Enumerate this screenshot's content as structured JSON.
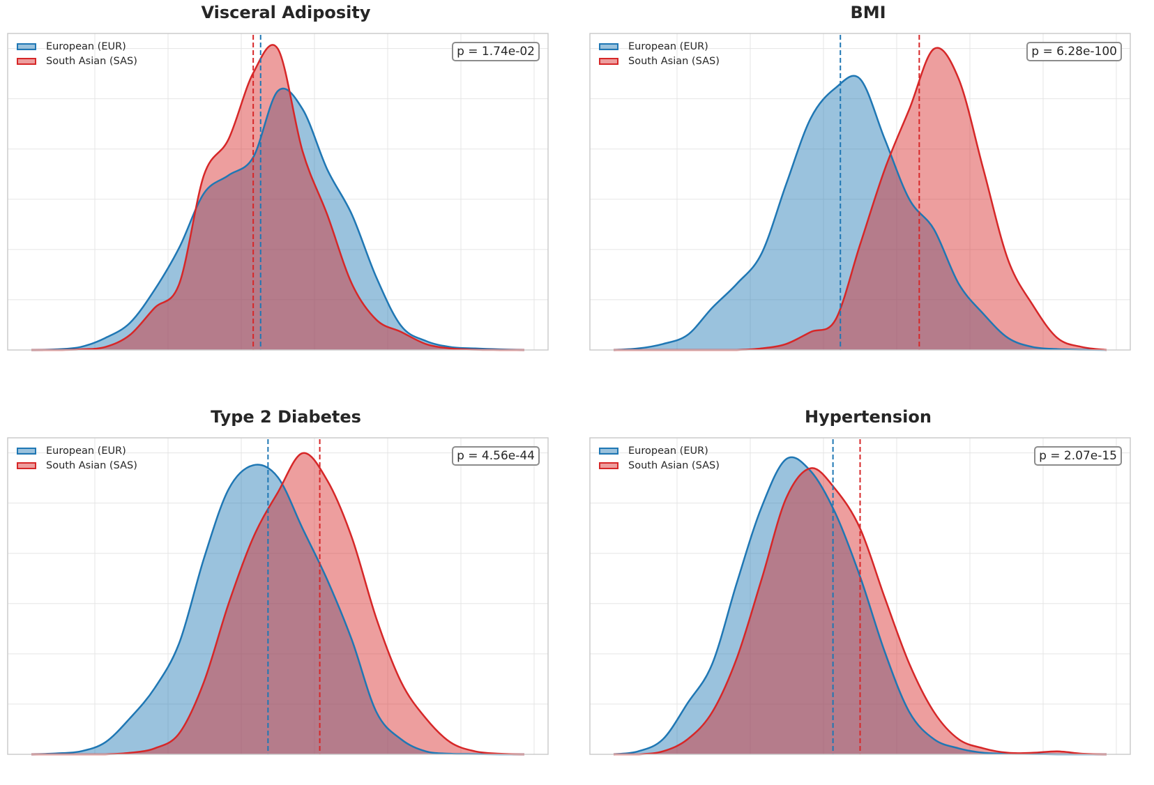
{
  "legend": {
    "eur": "European (EUR)",
    "sas": "South Asian (SAS)"
  },
  "colors": {
    "eur": "#1f77b4",
    "sas": "#d62728",
    "grid": "#e5e5e5",
    "frame": "#cccccc"
  },
  "chart_data": [
    {
      "type": "area",
      "title": "Visceral Adiposity",
      "annotation": "p = 1.74e-02",
      "xlim": [
        0,
        100
      ],
      "ylim": [
        0,
        1
      ],
      "x": [
        0,
        5,
        10,
        15,
        20,
        25,
        30,
        35,
        40,
        45,
        50,
        55,
        60,
        65,
        70,
        75,
        80,
        85,
        90,
        95,
        100
      ],
      "series": [
        {
          "name": "European (EUR)",
          "values": [
            0,
            0.002,
            0.01,
            0.04,
            0.09,
            0.2,
            0.34,
            0.52,
            0.58,
            0.64,
            0.86,
            0.8,
            0.6,
            0.45,
            0.24,
            0.08,
            0.03,
            0.01,
            0.005,
            0.002,
            0
          ]
        },
        {
          "name": "South Asian (SAS)",
          "values": [
            0,
            0,
            0.002,
            0.01,
            0.05,
            0.14,
            0.22,
            0.58,
            0.7,
            0.92,
            1.0,
            0.66,
            0.45,
            0.22,
            0.1,
            0.06,
            0.02,
            0.005,
            0.001,
            0,
            0
          ]
        }
      ],
      "means": {
        "European (EUR)": 46.5,
        "South Asian (SAS)": 45
      }
    },
    {
      "type": "area",
      "title": "BMI",
      "annotation": "p = 6.28e-100",
      "xlim": [
        0,
        100
      ],
      "ylim": [
        0,
        1
      ],
      "x": [
        0,
        5,
        10,
        15,
        20,
        25,
        30,
        35,
        40,
        45,
        50,
        55,
        60,
        65,
        70,
        75,
        80,
        85,
        90,
        95,
        100
      ],
      "series": [
        {
          "name": "European (EUR)",
          "values": [
            0,
            0.005,
            0.02,
            0.05,
            0.14,
            0.22,
            0.32,
            0.55,
            0.77,
            0.87,
            0.9,
            0.7,
            0.5,
            0.4,
            0.22,
            0.12,
            0.04,
            0.01,
            0.003,
            0.001,
            0
          ]
        },
        {
          "name": "South Asian (SAS)",
          "values": [
            0,
            0,
            0,
            0,
            0,
            0,
            0.005,
            0.02,
            0.06,
            0.1,
            0.35,
            0.6,
            0.8,
            1.0,
            0.9,
            0.6,
            0.3,
            0.15,
            0.04,
            0.01,
            0
          ]
        }
      ],
      "means": {
        "European (EUR)": 46,
        "South Asian (SAS)": 62
      }
    },
    {
      "type": "area",
      "title": "Type 2 Diabetes",
      "annotation": "p = 4.56e-44",
      "xlim": [
        0,
        100
      ],
      "ylim": [
        0,
        1
      ],
      "x": [
        0,
        5,
        10,
        15,
        20,
        25,
        30,
        35,
        40,
        45,
        50,
        55,
        60,
        65,
        70,
        75,
        80,
        85,
        90,
        95,
        100
      ],
      "series": [
        {
          "name": "European (EUR)",
          "values": [
            0,
            0.003,
            0.01,
            0.04,
            0.12,
            0.22,
            0.37,
            0.65,
            0.88,
            0.96,
            0.92,
            0.75,
            0.58,
            0.38,
            0.14,
            0.05,
            0.01,
            0.002,
            0.001,
            0,
            0
          ]
        },
        {
          "name": "South Asian (SAS)",
          "values": [
            0,
            0,
            0,
            0,
            0.005,
            0.02,
            0.07,
            0.24,
            0.5,
            0.72,
            0.87,
            1.0,
            0.91,
            0.72,
            0.45,
            0.24,
            0.12,
            0.04,
            0.01,
            0.002,
            0
          ]
        }
      ],
      "means": {
        "European (EUR)": 48,
        "South Asian (SAS)": 58.5
      }
    },
    {
      "type": "area",
      "title": "Hypertension",
      "annotation": "p = 2.07e-15",
      "xlim": [
        0,
        100
      ],
      "ylim": [
        0,
        1
      ],
      "x": [
        0,
        5,
        10,
        15,
        20,
        25,
        30,
        35,
        40,
        45,
        50,
        55,
        60,
        65,
        70,
        75,
        80,
        85,
        90,
        95,
        100
      ],
      "series": [
        {
          "name": "European (EUR)",
          "values": [
            0,
            0.01,
            0.05,
            0.17,
            0.3,
            0.57,
            0.82,
            0.98,
            0.94,
            0.8,
            0.59,
            0.34,
            0.14,
            0.05,
            0.02,
            0.005,
            0.002,
            0.001,
            0,
            0,
            0
          ]
        },
        {
          "name": "South Asian (SAS)",
          "values": [
            0,
            0,
            0.01,
            0.05,
            0.14,
            0.32,
            0.58,
            0.85,
            0.95,
            0.88,
            0.75,
            0.52,
            0.3,
            0.14,
            0.05,
            0.02,
            0.005,
            0.005,
            0.01,
            0.002,
            0
          ]
        }
      ],
      "means": {
        "European (EUR)": 44.5,
        "South Asian (SAS)": 50
      }
    }
  ]
}
